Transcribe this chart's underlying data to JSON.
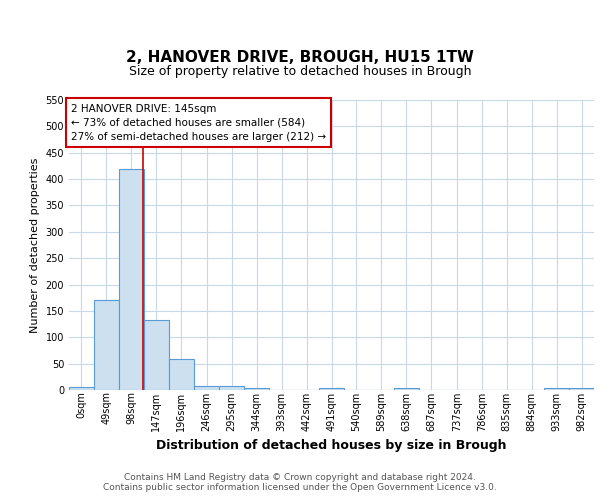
{
  "title1": "2, HANOVER DRIVE, BROUGH, HU15 1TW",
  "title2": "Size of property relative to detached houses in Brough",
  "xlabel": "Distribution of detached houses by size in Brough",
  "ylabel": "Number of detached properties",
  "bin_edges": [
    0,
    49,
    98,
    147,
    196,
    246,
    295,
    344,
    393,
    442,
    491,
    540,
    589,
    638,
    687,
    737,
    786,
    835,
    884,
    933,
    982,
    1031
  ],
  "bin_labels": [
    "0sqm",
    "49sqm",
    "98sqm",
    "147sqm",
    "196sqm",
    "246sqm",
    "295sqm",
    "344sqm",
    "393sqm",
    "442sqm",
    "491sqm",
    "540sqm",
    "589sqm",
    "638sqm",
    "687sqm",
    "737sqm",
    "786sqm",
    "835sqm",
    "884sqm",
    "933sqm",
    "982sqm"
  ],
  "bar_heights": [
    5,
    170,
    420,
    133,
    58,
    8,
    8,
    4,
    0,
    0,
    4,
    0,
    0,
    4,
    0,
    0,
    0,
    0,
    0,
    4,
    4
  ],
  "bar_color": "#cce0f0",
  "bar_edgecolor": "#5b9bd5",
  "property_line_x": 145,
  "property_line_color": "#cc0000",
  "ylim": [
    0,
    550
  ],
  "yticks": [
    0,
    50,
    100,
    150,
    200,
    250,
    300,
    350,
    400,
    450,
    500,
    550
  ],
  "annotation_text": "2 HANOVER DRIVE: 145sqm\n← 73% of detached houses are smaller (584)\n27% of semi-detached houses are larger (212) →",
  "annotation_box_edgecolor": "#cc0000",
  "annotation_box_facecolor": "#ffffff",
  "footer_text": "Contains HM Land Registry data © Crown copyright and database right 2024.\nContains public sector information licensed under the Open Government Licence v3.0.",
  "background_color": "#ffffff",
  "grid_color": "#c8d8e8",
  "title1_fontsize": 11,
  "title2_fontsize": 9,
  "xlabel_fontsize": 9,
  "ylabel_fontsize": 8,
  "tick_fontsize": 7,
  "annotation_fontsize": 7.5,
  "footer_fontsize": 6.5
}
